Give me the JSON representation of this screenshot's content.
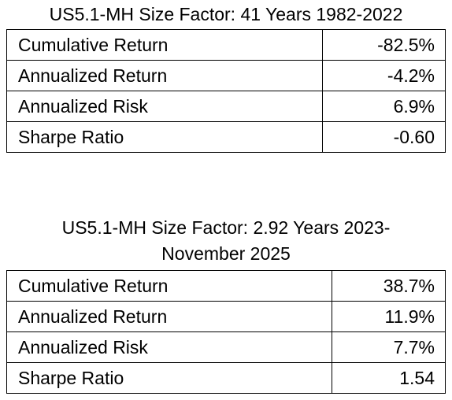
{
  "tables": [
    {
      "title": "US5.1-MH Size Factor: 41 Years 1982-2022",
      "rows": [
        [
          "Cumulative Return",
          "-82.5%"
        ],
        [
          "Annualized Return",
          "-4.2%"
        ],
        [
          "Annualized Risk",
          "6.9%"
        ],
        [
          "Sharpe Ratio",
          "-0.60"
        ]
      ]
    },
    {
      "title": "US5.1-MH Size Factor: 2.92 Years 2023-November 2025",
      "rows": [
        [
          "Cumulative Return",
          "38.7%"
        ],
        [
          "Annualized Return",
          "11.9%"
        ],
        [
          "Annualized Risk",
          "7.7%"
        ],
        [
          "Sharpe Ratio",
          "1.54"
        ]
      ]
    }
  ]
}
